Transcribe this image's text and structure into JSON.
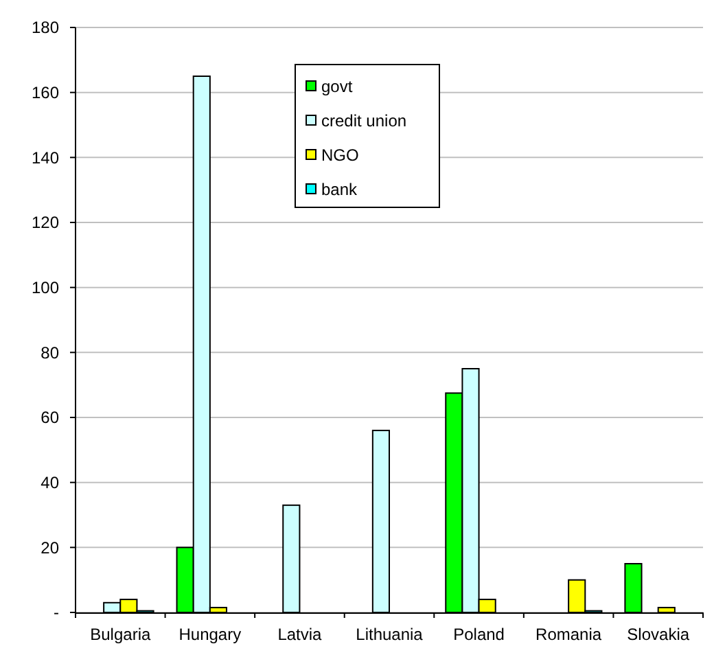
{
  "chart_data": {
    "type": "bar",
    "categories": [
      "Bulgaria",
      "Hungary",
      "Latvia",
      "Lithuania",
      "Poland",
      "Romania",
      "Slovakia"
    ],
    "series": [
      {
        "name": "govt",
        "color": "#00ff00",
        "values": [
          null,
          20,
          null,
          null,
          67.5,
          null,
          15
        ]
      },
      {
        "name": "credit union",
        "color": "#ccffff",
        "values": [
          3,
          165,
          33,
          56,
          75,
          null,
          null
        ]
      },
      {
        "name": "NGO",
        "color": "#ffff00",
        "values": [
          4,
          1.5,
          null,
          null,
          4,
          10,
          1.5
        ]
      },
      {
        "name": "bank",
        "color": "#00ffff",
        "values": [
          0.5,
          null,
          null,
          null,
          null,
          0.5,
          null
        ]
      }
    ],
    "ylim": [
      0,
      180
    ],
    "yticks": [
      {
        "value": 0,
        "label": "-"
      },
      20,
      40,
      60,
      80,
      100,
      120,
      140,
      160,
      180
    ],
    "grid": "y",
    "legend": "top"
  }
}
